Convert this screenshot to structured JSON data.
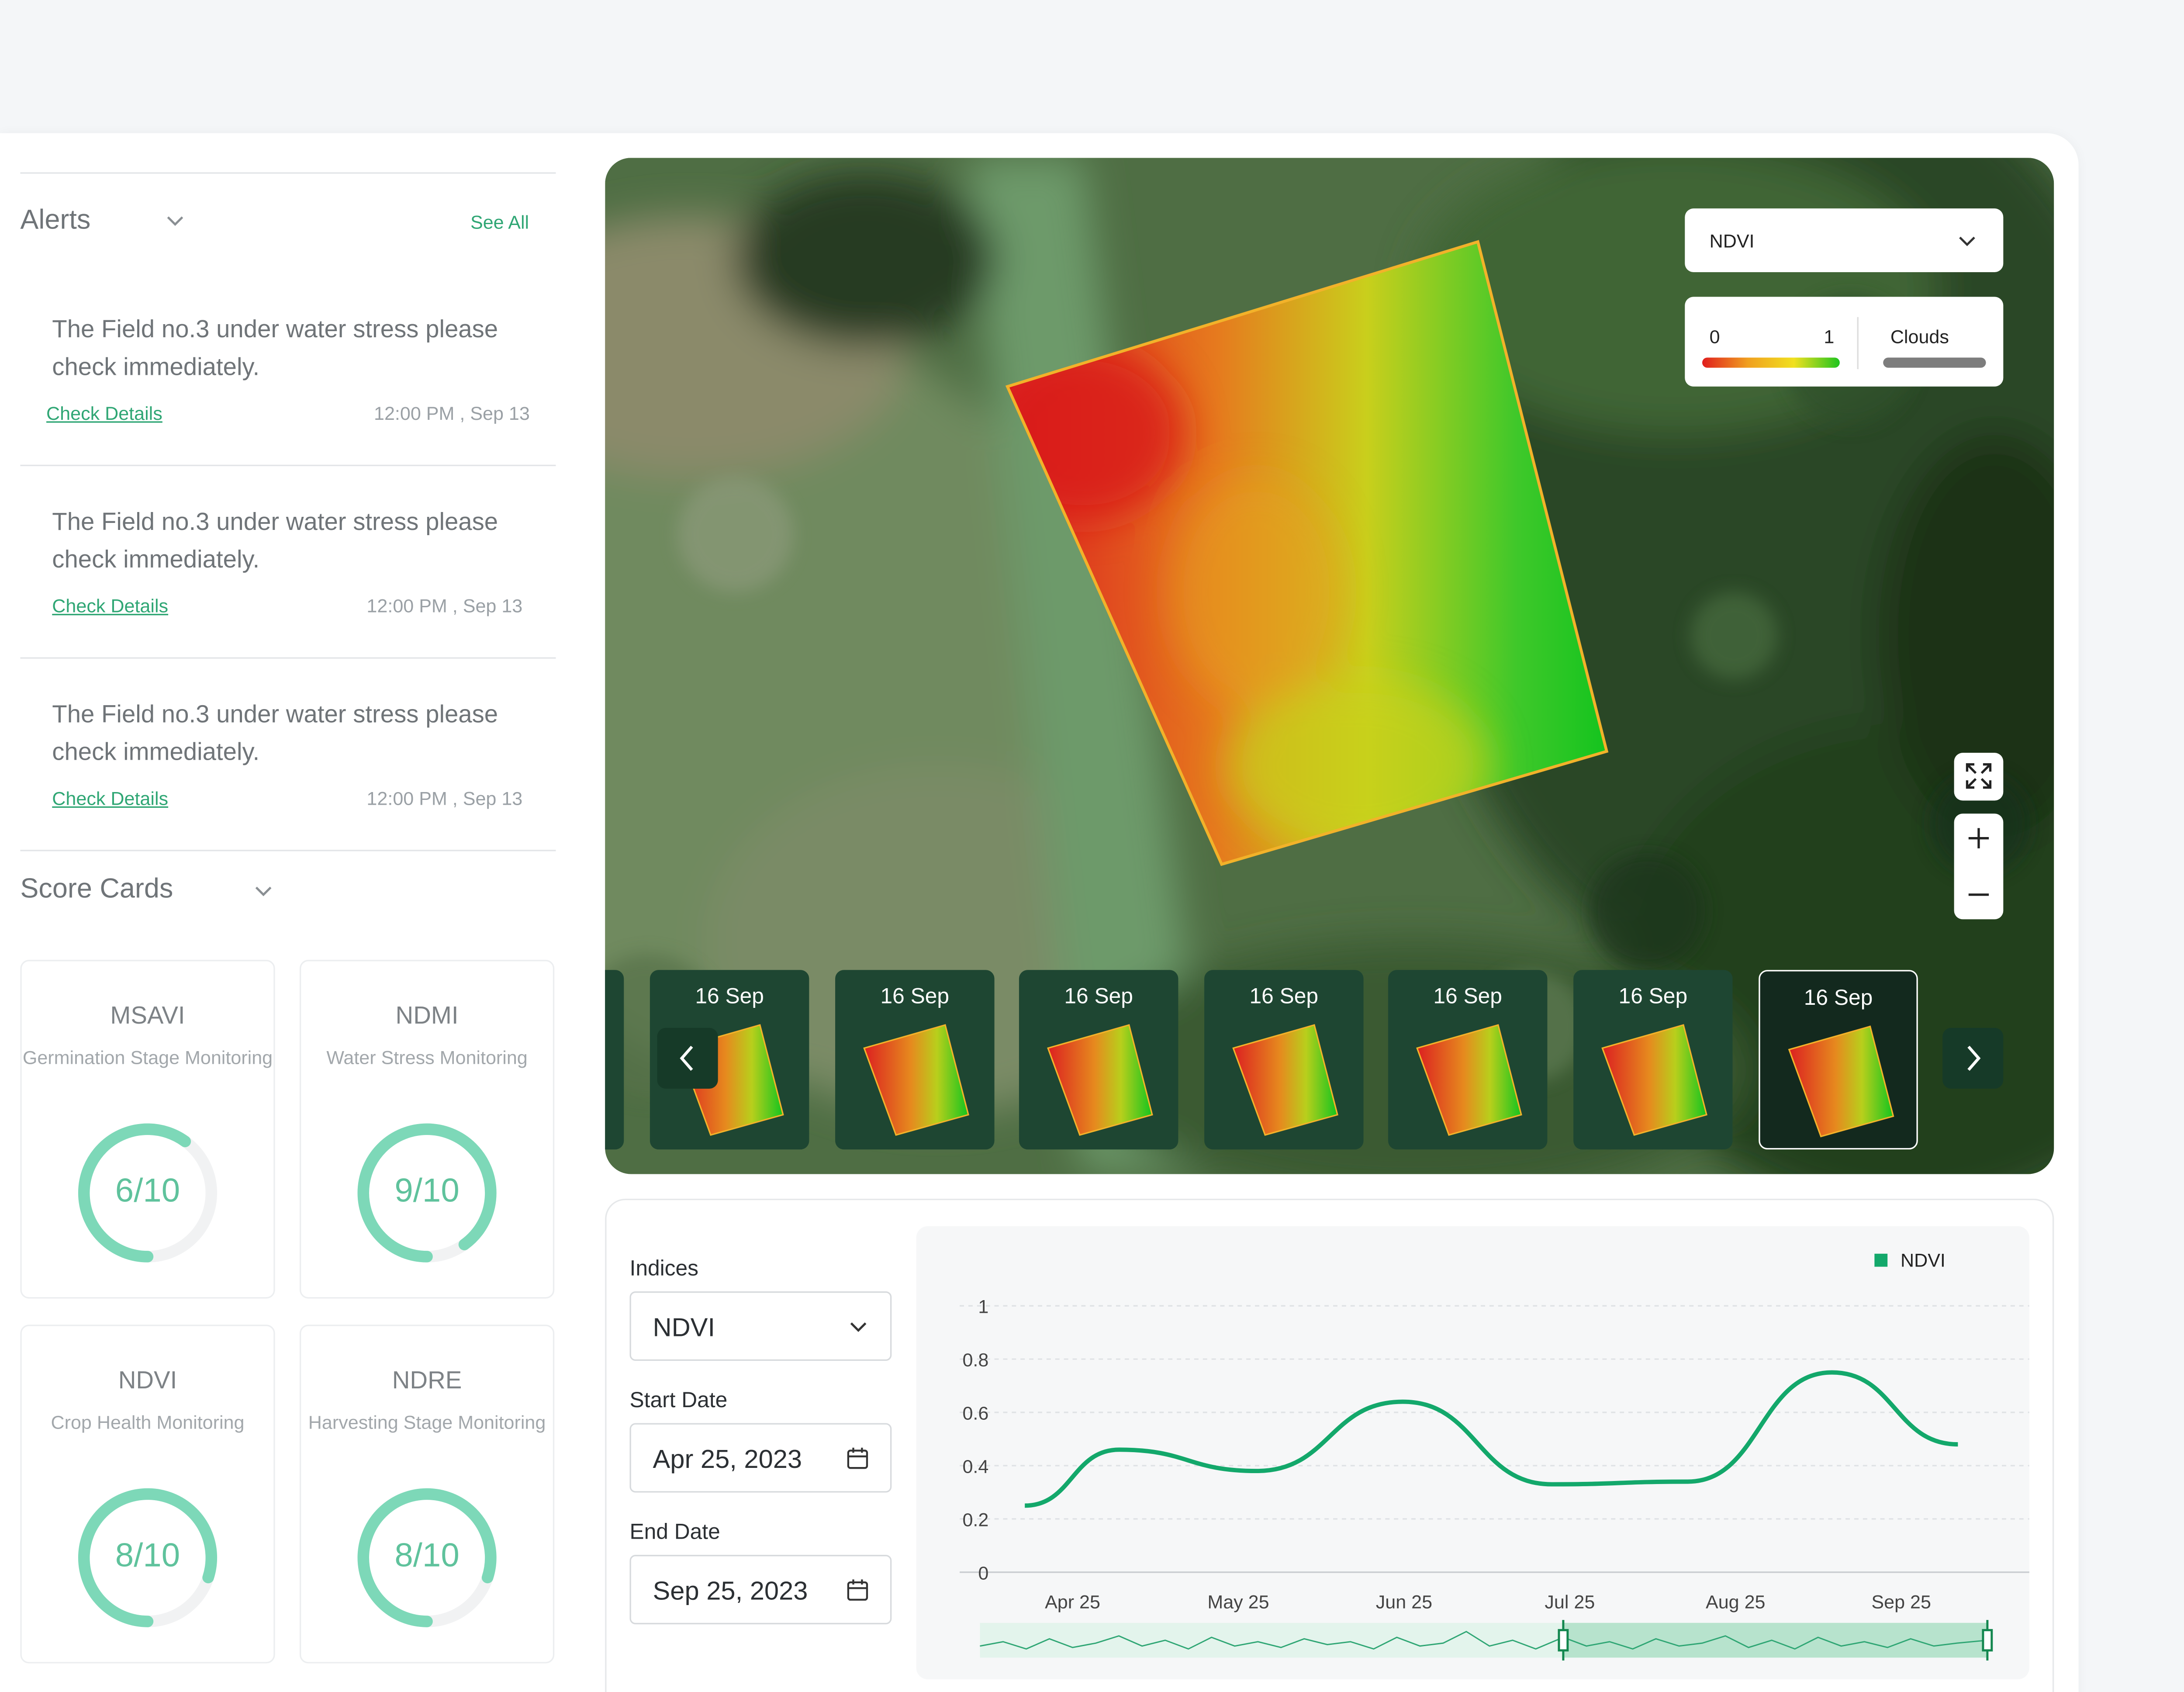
{
  "alerts": {
    "title": "Alerts",
    "see_all": "See All",
    "items": [
      {
        "text": "The Field no.3 under water stress please check immediately.",
        "link": "Check Details",
        "time": "12:00 PM , Sep 13"
      },
      {
        "text": "The Field no.3 under water stress please check immediately.",
        "link": "Check Details",
        "time": "12:00 PM , Sep 13"
      },
      {
        "text": "The Field no.3 under water stress please check immediately.",
        "link": "Check Details",
        "time": "12:00 PM , Sep 13"
      }
    ]
  },
  "score_cards": {
    "title": "Score Cards",
    "cards": [
      {
        "name": "MSAVI",
        "desc": "Germination Stage Monitoring",
        "value": "6/10",
        "score": 6
      },
      {
        "name": "NDMI",
        "desc": "Water Stress Monitoring",
        "value": "9/10",
        "score": 9
      },
      {
        "name": "NDVI",
        "desc": "Crop Health Monitoring",
        "value": "8/10",
        "score": 8
      },
      {
        "name": "NDRE",
        "desc": "Harvesting Stage Monitoring",
        "value": "8/10",
        "score": 8
      }
    ]
  },
  "map": {
    "index_select": "NDVI",
    "legend_min": "0",
    "legend_max": "1",
    "clouds_label": "Clouds",
    "thumbnails": [
      "16 Sep",
      "16 Sep",
      "16 Sep",
      "16 Sep",
      "16 Sep",
      "16 Sep",
      "16 Sep"
    ],
    "selected_thumbnail": 6,
    "icons": [
      "fullscreen-icon",
      "plus-icon",
      "minus-icon",
      "chevron-left-icon",
      "chevron-right-icon"
    ]
  },
  "filters": {
    "indices_label": "Indices",
    "indices_value": "NDVI",
    "start_label": "Start Date",
    "start_value": "Apr 25, 2023",
    "end_label": "End Date",
    "end_value": "Sep 25, 2023"
  },
  "colors": {
    "accent": "#13a86b",
    "gauge": "#7dd8b8"
  },
  "chart_data": {
    "type": "line",
    "x": [
      "Apr 25",
      "May 25",
      "Jun 25",
      "Jul 25",
      "Aug 25",
      "Sep 25"
    ],
    "ytick_labels": [
      "0",
      "0.2",
      "0.4",
      "0.6",
      "0.8",
      "1"
    ],
    "ylim": [
      0,
      1
    ],
    "series": [
      {
        "name": "NDVI",
        "color": "#13a86b",
        "points": [
          [
            0,
            0.25
          ],
          [
            0.57,
            0.46
          ],
          [
            1.4,
            0.38
          ],
          [
            2.28,
            0.64
          ],
          [
            3.18,
            0.33
          ],
          [
            4,
            0.34
          ],
          [
            4.87,
            0.75
          ],
          [
            5.63,
            0.48
          ]
        ]
      }
    ],
    "legend": "top-right",
    "grid": true
  }
}
